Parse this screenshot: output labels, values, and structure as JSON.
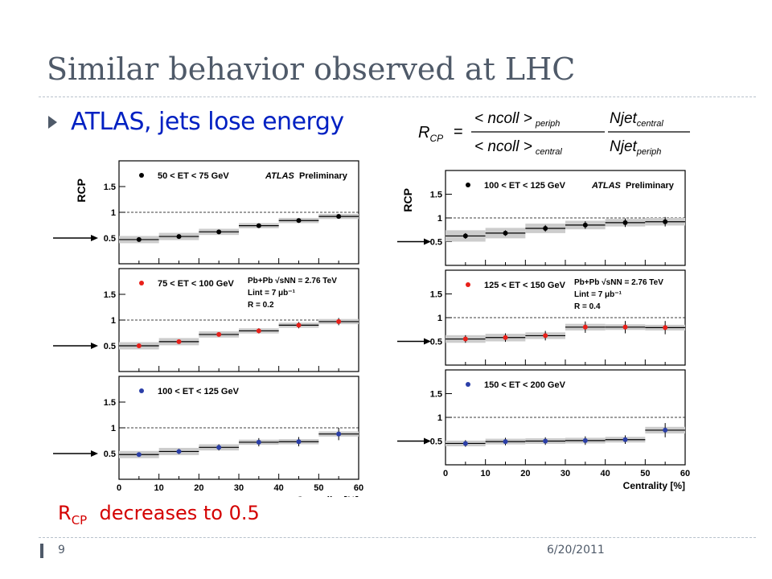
{
  "slide": {
    "title": "Similar behavior observed at LHC",
    "bullet": "ATLAS, jets lose energy",
    "conclusion_prefix": "R",
    "conclusion_sub": "CP",
    "conclusion_rest": "decreases to 0.5",
    "page_number": "9",
    "date": "6/20/2011"
  },
  "formula": {
    "lhs": "R",
    "lhs_sub": "CP",
    "num1": "< ncoll >",
    "num1_sub": "periph",
    "den1": "< ncoll >",
    "den1_sub": "central",
    "num2": "Njet",
    "num2_sub": "central",
    "den2": "Njet",
    "den2_sub": "periph"
  },
  "colors": {
    "title": "#4f5a69",
    "bullet": "#0020c2",
    "conclusion": "#d40000",
    "black_marker": "#000000",
    "red_marker": "#e8201a",
    "blue_marker": "#2b3fa8",
    "band": "#cccccc"
  },
  "chart_data": [
    {
      "type": "scatter",
      "id": "left",
      "xlabel": "Centrality [%]",
      "ylabel": "RCP",
      "xlim": [
        0,
        60
      ],
      "ylim": [
        0,
        2
      ],
      "xticks": [
        "0",
        "10",
        "20",
        "30",
        "40",
        "50",
        "60"
      ],
      "yticks": [
        "0.5",
        "1",
        "1.5"
      ],
      "atlas_label": "ATLAS",
      "atlas_suffix": "Preliminary",
      "info_lines": [
        "Pb+Pb √sNN = 2.76 TeV",
        "Lint = 7 μb⁻¹",
        "R = 0.2"
      ],
      "panels": [
        {
          "label": "50 < ET < 75 GeV",
          "color": "black",
          "x": [
            5,
            15,
            25,
            35,
            45,
            55
          ],
          "y": [
            0.47,
            0.53,
            0.62,
            0.74,
            0.84,
            0.92
          ],
          "yerr": [
            0.02,
            0.02,
            0.02,
            0.03,
            0.03,
            0.04
          ],
          "syst": [
            0.07,
            0.07,
            0.06,
            0.05,
            0.05,
            0.05
          ]
        },
        {
          "label": "75 < ET < 100 GeV",
          "color": "red",
          "x": [
            5,
            15,
            25,
            35,
            45,
            55
          ],
          "y": [
            0.5,
            0.58,
            0.72,
            0.79,
            0.9,
            0.97
          ],
          "yerr": [
            0.03,
            0.03,
            0.04,
            0.05,
            0.06,
            0.07
          ],
          "syst": [
            0.07,
            0.07,
            0.06,
            0.05,
            0.05,
            0.05
          ]
        },
        {
          "label": "100 < ET < 125 GeV",
          "color": "blue",
          "x": [
            5,
            15,
            25,
            35,
            45,
            55
          ],
          "y": [
            0.48,
            0.54,
            0.62,
            0.72,
            0.73,
            0.88
          ],
          "yerr": [
            0.04,
            0.05,
            0.06,
            0.08,
            0.09,
            0.12
          ],
          "syst": [
            0.07,
            0.07,
            0.06,
            0.05,
            0.05,
            0.05
          ]
        }
      ]
    },
    {
      "type": "scatter",
      "id": "right",
      "xlabel": "Centrality [%]",
      "ylabel": "RCP",
      "xlim": [
        0,
        60
      ],
      "ylim": [
        0,
        2
      ],
      "xticks": [
        "0",
        "10",
        "20",
        "30",
        "40",
        "50",
        "60"
      ],
      "yticks": [
        "0.5",
        "1",
        "1.5"
      ],
      "atlas_label": "ATLAS",
      "atlas_suffix": "Preliminary",
      "info_lines": [
        "Pb+Pb √sNN = 2.76 TeV",
        "Lint = 7 μb⁻¹",
        "R = 0.4"
      ],
      "panels": [
        {
          "label": "100 < ET < 125 GeV",
          "color": "black",
          "x": [
            5,
            15,
            25,
            35,
            45,
            55
          ],
          "y": [
            0.62,
            0.68,
            0.78,
            0.85,
            0.9,
            0.92
          ],
          "yerr": [
            0.06,
            0.06,
            0.07,
            0.08,
            0.09,
            0.1
          ],
          "syst": [
            0.12,
            0.11,
            0.1,
            0.09,
            0.08,
            0.08
          ]
        },
        {
          "label": "125 < ET < 150 GeV",
          "color": "red",
          "x": [
            5,
            15,
            25,
            35,
            45,
            55
          ],
          "y": [
            0.55,
            0.58,
            0.62,
            0.8,
            0.8,
            0.79
          ],
          "yerr": [
            0.08,
            0.09,
            0.1,
            0.12,
            0.13,
            0.14
          ],
          "syst": [
            0.08,
            0.08,
            0.07,
            0.07,
            0.06,
            0.06
          ]
        },
        {
          "label": "150 < ET < 200 GeV",
          "color": "blue",
          "x": [
            5,
            15,
            25,
            35,
            45,
            55
          ],
          "y": [
            0.45,
            0.49,
            0.5,
            0.51,
            0.53,
            0.73
          ],
          "yerr": [
            0.07,
            0.08,
            0.08,
            0.09,
            0.09,
            0.15
          ],
          "syst": [
            0.06,
            0.06,
            0.06,
            0.06,
            0.06,
            0.07
          ]
        }
      ]
    }
  ]
}
